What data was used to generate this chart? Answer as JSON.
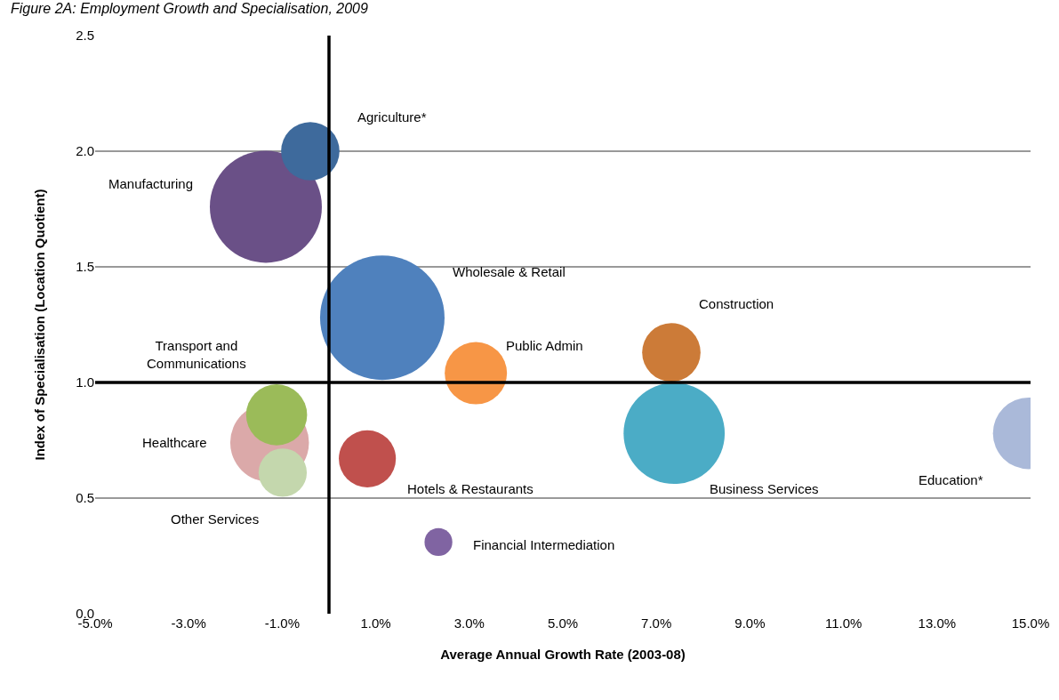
{
  "chart_data": {
    "type": "bubble",
    "title": "Figure 2A: Employment Growth and Specialisation, 2009",
    "xlabel": "Average Annual Growth Rate (2003-08)",
    "ylabel": "Index of Specialisation (Location Quotient)",
    "series": [
      {
        "name": "Manufacturing",
        "color": "#6a5087",
        "x": [
          -1.35
        ],
        "values": [
          1.76
        ],
        "sizes": [
          0.81
        ]
      },
      {
        "name": "Agriculture*",
        "color": "#3e6a9c",
        "x": [
          -0.4
        ],
        "values": [
          2.0
        ],
        "sizes": [
          0.22
        ]
      },
      {
        "name": "Wholesale & Retail",
        "color": "#4f81bd",
        "x": [
          1.14
        ],
        "values": [
          1.28
        ],
        "sizes": [
          1
        ]
      },
      {
        "name": "Public Admin",
        "color": "#f79646",
        "x": [
          3.14
        ],
        "values": [
          1.04
        ],
        "sizes": [
          0.25
        ]
      },
      {
        "name": "Construction",
        "color": "#cc7b38",
        "x": [
          7.32
        ],
        "values": [
          1.13
        ],
        "sizes": [
          0.22
        ]
      },
      {
        "name": "Business Services",
        "color": "#4bacc6",
        "x": [
          7.38
        ],
        "values": [
          0.78
        ],
        "sizes": [
          0.66
        ]
      },
      {
        "name": "Education*",
        "color": "#aab9d9",
        "x": [
          14.96
        ],
        "values": [
          0.78
        ],
        "sizes": [
          0.33
        ]
      },
      {
        "name": "Healthcare",
        "color": "#dba9a9",
        "x": [
          -1.27
        ],
        "values": [
          0.74
        ],
        "sizes": [
          0.4
        ]
      },
      {
        "name": "Transport and\nCommunications",
        "color": "#9bbb59",
        "x": [
          -1.12
        ],
        "values": [
          0.86
        ],
        "sizes": [
          0.24
        ]
      },
      {
        "name": "Other Services",
        "color": "#c4d7ad",
        "x": [
          -0.99
        ],
        "values": [
          0.61
        ],
        "sizes": [
          0.15
        ]
      },
      {
        "name": "Hotels & Restaurants",
        "color": "#c0504d",
        "x": [
          0.82
        ],
        "values": [
          0.67
        ],
        "sizes": [
          0.21
        ]
      },
      {
        "name": "Financial Intermediation",
        "color": "#8064a2",
        "x": [
          2.34
        ],
        "values": [
          0.31
        ],
        "sizes": [
          0.05
        ]
      }
    ],
    "xlim": [
      -5,
      15
    ],
    "xticks": [
      {
        "value": -5,
        "label": "-5.0%"
      },
      {
        "value": -3,
        "label": "-3.0%"
      },
      {
        "value": -1,
        "label": "-1.0%"
      },
      {
        "value": 1,
        "label": "1.0%"
      },
      {
        "value": 3,
        "label": "3.0%"
      },
      {
        "value": 5,
        "label": "5.0%"
      },
      {
        "value": 7,
        "label": "7.0%"
      },
      {
        "value": 9,
        "label": "9.0%"
      },
      {
        "value": 11,
        "label": "11.0%"
      },
      {
        "value": 13,
        "label": "13.0%"
      },
      {
        "value": 15,
        "label": "15.0%"
      }
    ],
    "ylim": [
      0,
      2.5
    ],
    "yticks": [
      {
        "value": 0,
        "label": "0.0"
      },
      {
        "value": 0.5,
        "label": "0.5"
      },
      {
        "value": 1,
        "label": "1.0"
      },
      {
        "value": 1.5,
        "label": "1.5"
      },
      {
        "value": 2,
        "label": "2.0"
      },
      {
        "value": 2.5,
        "label": "2.5"
      }
    ],
    "grid": "y",
    "ref_lines": [
      {
        "axis": "x",
        "value": 0,
        "color": "#000000"
      },
      {
        "axis": "y",
        "value": 1,
        "color": "#000000"
      }
    ]
  }
}
